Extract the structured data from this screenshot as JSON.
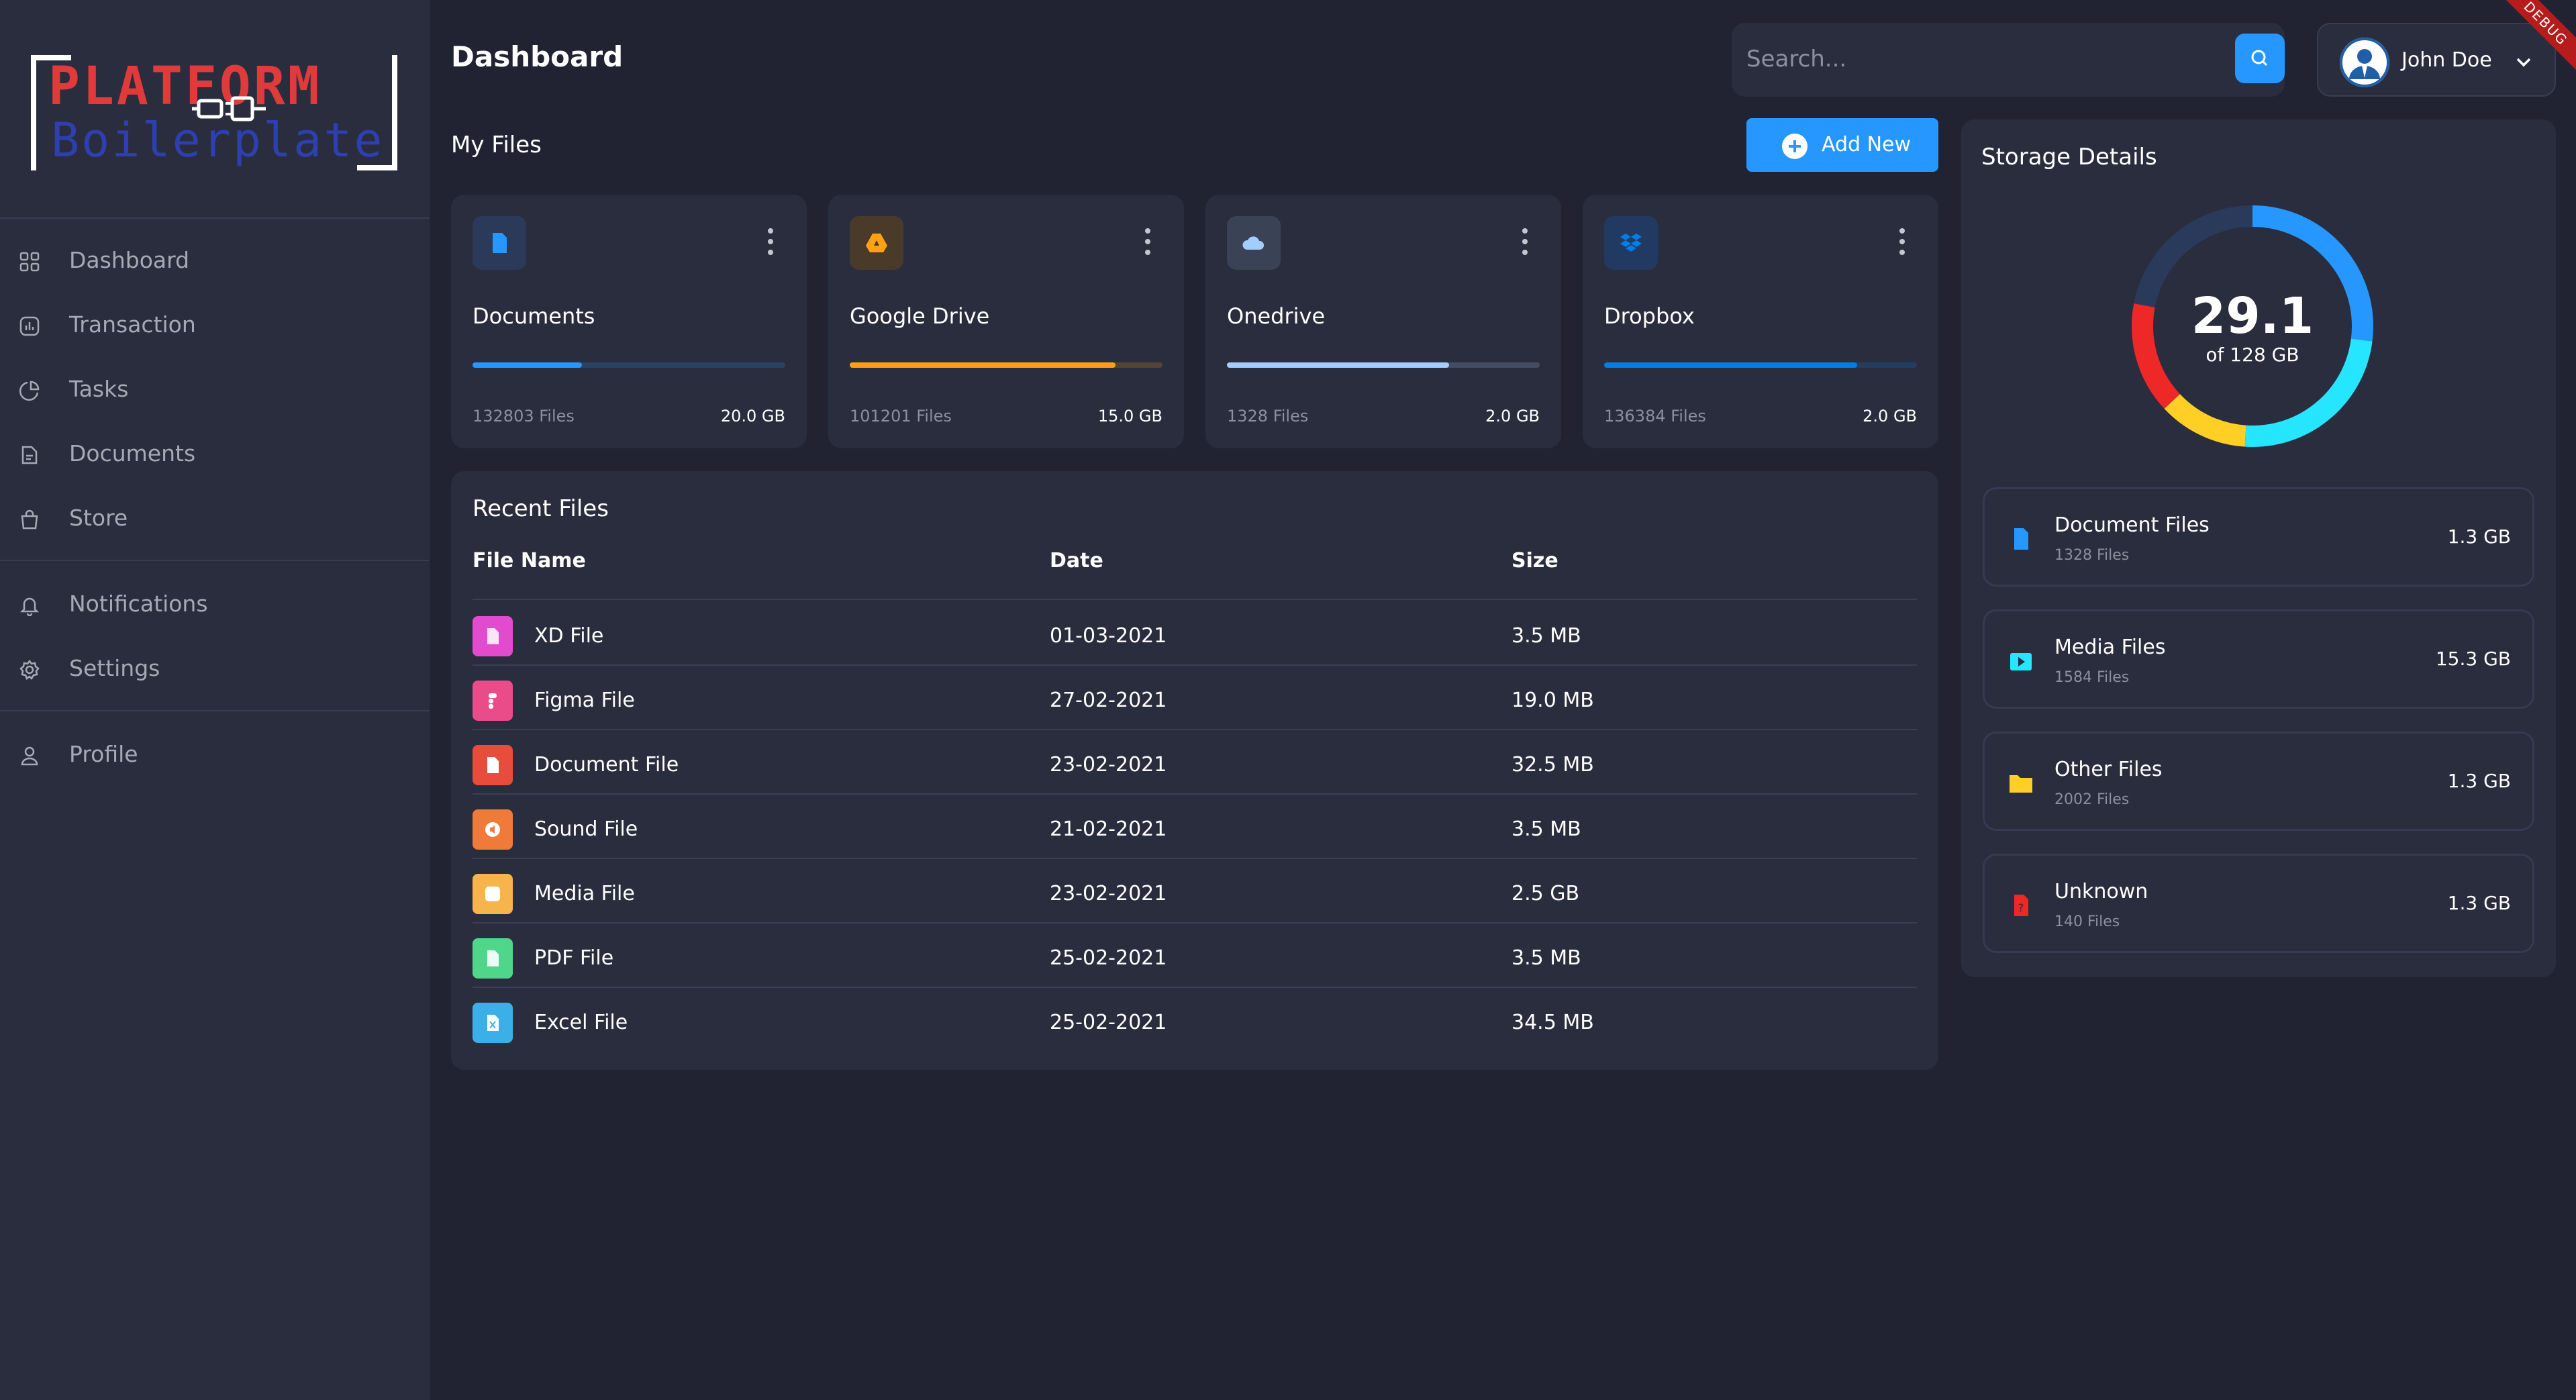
{
  "sidebar": {
    "logo": {
      "line1": "PLATFORM",
      "line2": "Boilerplate"
    },
    "items": [
      {
        "label": "Dashboard",
        "icon": "grid-icon"
      },
      {
        "label": "Transaction",
        "icon": "chart-icon"
      },
      {
        "label": "Tasks",
        "icon": "pie-icon"
      },
      {
        "label": "Documents",
        "icon": "document-icon"
      },
      {
        "label": "Store",
        "icon": "bag-icon"
      },
      {
        "label": "Notifications",
        "icon": "bell-icon"
      },
      {
        "label": "Settings",
        "icon": "gear-icon"
      },
      {
        "label": "Profile",
        "icon": "user-icon"
      }
    ]
  },
  "header": {
    "title": "Dashboard",
    "search_placeholder": "Search...",
    "user_name": "John Doe",
    "debug_label": "DEBUG"
  },
  "my_files": {
    "title": "My Files",
    "add_label": "Add New",
    "cards": [
      {
        "title": "Documents",
        "files": "132803 Files",
        "size": "20.0 GB",
        "progress": 0.35,
        "color": "#2697ff",
        "icon": "document-icon"
      },
      {
        "title": "Google Drive",
        "files": "101201 Files",
        "size": "15.0 GB",
        "progress": 0.85,
        "color": "#ffa113",
        "icon": "drive-icon"
      },
      {
        "title": "Onedrive",
        "files": "1328 Files",
        "size": "2.0 GB",
        "progress": 0.71,
        "color": "#a4cdff",
        "icon": "cloud-icon"
      },
      {
        "title": "Dropbox",
        "files": "136384 Files",
        "size": "2.0 GB",
        "progress": 0.81,
        "color": "#007ee5",
        "icon": "dropbox-icon"
      }
    ]
  },
  "recent_files": {
    "title": "Recent Files",
    "columns": [
      "File Name",
      "Date",
      "Size"
    ],
    "rows": [
      {
        "name": "XD File",
        "date": "01-03-2021",
        "size": "3.5 MB",
        "color": "#e24bce"
      },
      {
        "name": "Figma File",
        "date": "27-02-2021",
        "size": "19.0 MB",
        "color": "#ea4c89"
      },
      {
        "name": "Document File",
        "date": "23-02-2021",
        "size": "32.5 MB",
        "color": "#e74c3c"
      },
      {
        "name": "Sound File",
        "date": "21-02-2021",
        "size": "3.5 MB",
        "color": "#f07a3a"
      },
      {
        "name": "Media File",
        "date": "23-02-2021",
        "size": "2.5 GB",
        "color": "#f6b54c"
      },
      {
        "name": "PDF File",
        "date": "25-02-2021",
        "size": "3.5 MB",
        "color": "#4fd68a"
      },
      {
        "name": "Excel File",
        "date": "25-02-2021",
        "size": "34.5 MB",
        "color": "#3bb0e8"
      }
    ]
  },
  "storage": {
    "title": "Storage Details",
    "used": "29.1",
    "total": "of 128 GB",
    "segments": [
      {
        "color": "#2697ff",
        "fraction": 0.27
      },
      {
        "color": "#26e5ff",
        "fraction": 0.24
      },
      {
        "color": "#ffcf26",
        "fraction": 0.12
      },
      {
        "color": "#ee2727",
        "fraction": 0.15
      },
      {
        "color": "#2a3a5a",
        "fraction": 0.22
      }
    ],
    "items": [
      {
        "title": "Document Files",
        "sub": "1328 Files",
        "size": "1.3 GB",
        "icon": "document-icon",
        "color": "#2697ff"
      },
      {
        "title": "Media Files",
        "sub": "1584 Files",
        "size": "15.3 GB",
        "icon": "media-icon",
        "color": "#26e5ff"
      },
      {
        "title": "Other Files",
        "sub": "2002 Files",
        "size": "1.3 GB",
        "icon": "folder-icon",
        "color": "#ffcf26"
      },
      {
        "title": "Unknown",
        "sub": "140 Files",
        "size": "1.3 GB",
        "icon": "unknown-file-icon",
        "color": "#ee2727"
      }
    ]
  }
}
